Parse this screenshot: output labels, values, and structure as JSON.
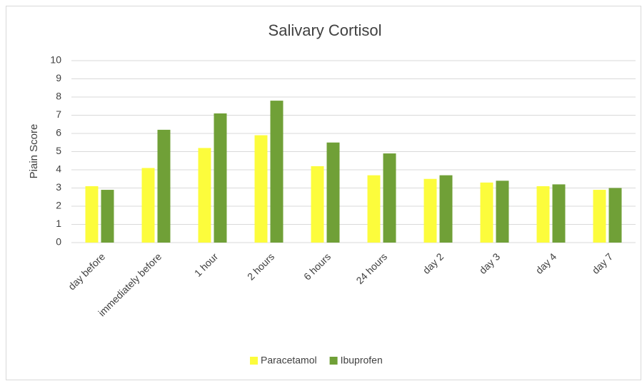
{
  "chart_data": {
    "type": "bar",
    "title": "Salivary Cortisol",
    "y_label": "Piain Score",
    "categories": [
      "day before",
      "immediately before",
      "1 hour",
      "2 hours",
      "6 hours",
      "24 hours",
      "day 2",
      "day 3",
      "day 4",
      "day 7"
    ],
    "series": [
      {
        "name": "Paracetamol",
        "color": "#fcfc3c",
        "values": [
          3.1,
          4.1,
          5.2,
          5.9,
          4.2,
          3.7,
          3.5,
          3.3,
          3.1,
          2.9
        ]
      },
      {
        "name": "Ibuprofen",
        "color": "#70a037",
        "values": [
          2.9,
          6.2,
          7.1,
          7.8,
          5.5,
          4.9,
          3.7,
          3.4,
          3.2,
          3.0
        ]
      }
    ],
    "ylim": [
      0,
      10
    ],
    "yticks": [
      0,
      1,
      2,
      3,
      4,
      5,
      6,
      7,
      8,
      9,
      10
    ],
    "grid": true,
    "legend": "bottom"
  }
}
